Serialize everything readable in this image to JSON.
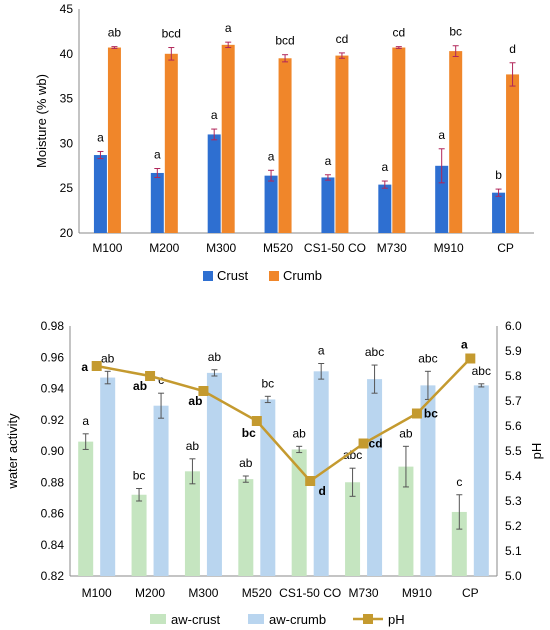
{
  "chart_data": [
    {
      "type": "bar",
      "ylabel": "Moisture (% wb)",
      "ylim": [
        20,
        45
      ],
      "yticks": [
        20,
        25,
        30,
        35,
        40,
        45
      ],
      "grid": false,
      "legend_position": "bottom",
      "categories": [
        "M100",
        "M200",
        "M300",
        "M520",
        "CS1-50 CO",
        "M730",
        "M910",
        "CP"
      ],
      "colors": {
        "Crust": "#2e6fd1",
        "Crumb": "#f0862a",
        "error": "#b1265a"
      },
      "series": [
        {
          "name": "Crust",
          "values": [
            28.7,
            26.7,
            31.0,
            26.4,
            26.2,
            25.4,
            27.5,
            24.5
          ],
          "errors": [
            0.4,
            0.5,
            0.6,
            0.6,
            0.3,
            0.4,
            1.9,
            0.4
          ],
          "labels": [
            "a",
            "a",
            "a",
            "a",
            "a",
            "a",
            "a",
            "b"
          ]
        },
        {
          "name": "Crumb",
          "values": [
            40.7,
            40.0,
            41.0,
            39.5,
            39.8,
            40.7,
            40.3,
            37.7
          ],
          "errors": [
            0.1,
            0.7,
            0.3,
            0.4,
            0.3,
            0.1,
            0.6,
            1.3
          ],
          "labels": [
            "ab",
            "bcd",
            "a",
            "bcd",
            "cd",
            "cd",
            "bc",
            "d"
          ]
        }
      ]
    },
    {
      "type": "bar",
      "ylabel": "water activity",
      "y2label": "pH",
      "ylim": [
        0.82,
        0.98
      ],
      "yticks": [
        0.82,
        0.84,
        0.86,
        0.88,
        0.9,
        0.92,
        0.94,
        0.96,
        0.98
      ],
      "y2lim": [
        5.0,
        6.0
      ],
      "y2ticks": [
        5.0,
        5.1,
        5.2,
        5.3,
        5.4,
        5.5,
        5.6,
        5.7,
        5.8,
        5.9,
        6.0
      ],
      "grid": false,
      "legend_position": "bottom",
      "categories": [
        "M100",
        "M200",
        "M300",
        "M520",
        "CS1-50 CO",
        "M730",
        "M910",
        "CP"
      ],
      "colors": {
        "aw-crust": "#c5e5c0",
        "aw-crumb": "#b9d5ef",
        "pH": "#c49a2f",
        "error": "#555555"
      },
      "series": [
        {
          "name": "aw-crust",
          "values": [
            0.906,
            0.872,
            0.887,
            0.882,
            0.901,
            0.88,
            0.89,
            0.861
          ],
          "errors": [
            0.005,
            0.004,
            0.008,
            0.002,
            0.002,
            0.009,
            0.013,
            0.011
          ],
          "labels": [
            "a",
            "bc",
            "ab",
            "ab",
            "ab",
            "abc",
            "ab",
            "c"
          ]
        },
        {
          "name": "aw-crumb",
          "values": [
            0.947,
            0.929,
            0.95,
            0.933,
            0.951,
            0.946,
            0.942,
            0.942
          ],
          "errors": [
            0.004,
            0.008,
            0.002,
            0.002,
            0.005,
            0.009,
            0.009,
            0.001
          ],
          "labels": [
            "ab",
            "c",
            "ab",
            "bc",
            "a",
            "abc",
            "abc",
            "abc"
          ]
        },
        {
          "name": "pH",
          "type": "line",
          "axis": "right",
          "values": [
            5.84,
            5.8,
            5.74,
            5.62,
            5.38,
            5.53,
            5.65,
            5.87
          ],
          "labels": [
            "a",
            "ab",
            "ab",
            "bc",
            "d",
            "cd",
            "bc",
            "a"
          ]
        }
      ]
    }
  ]
}
